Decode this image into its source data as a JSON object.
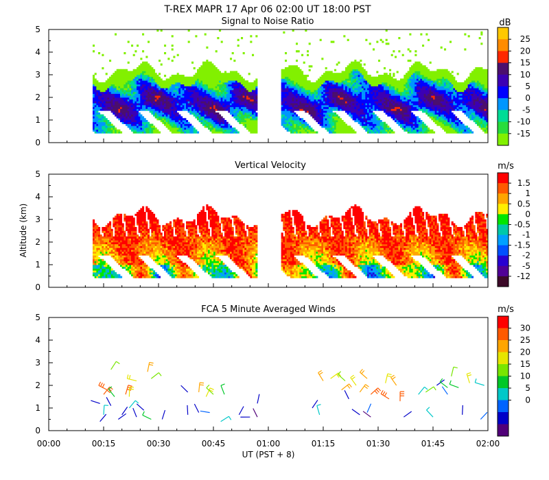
{
  "chart_data": [
    {
      "type": "heatmap",
      "title": "Signal to Noise Ratio",
      "ylabel": "",
      "ylim": [
        0,
        5
      ],
      "yticks": [
        "0",
        "1",
        "2",
        "3",
        "4",
        "5"
      ],
      "colorbar_unit": "dB",
      "colorbar_labels": [
        "25",
        "20",
        "15",
        "10",
        "5",
        "0",
        "-5",
        "-10",
        "-15"
      ],
      "colorbar_colors": [
        "#ffc800",
        "#ff8c00",
        "#ff2800",
        "#4b0f6e",
        "#3c00b4",
        "#0000ff",
        "#0096ff",
        "#00dc96",
        "#28dc3c",
        "#82f000"
      ],
      "data_gaps": [
        [
          0.95,
          1.05
        ]
      ]
    },
    {
      "type": "heatmap",
      "title": "Vertical Velocity",
      "ylabel": "Altitude (km)",
      "ylim": [
        0,
        5
      ],
      "yticks": [
        "0",
        "1",
        "2",
        "3",
        "4",
        "5"
      ],
      "colorbar_unit": "m/s",
      "colorbar_labels": [
        "1.5",
        "1",
        "0.5",
        "0",
        "-0.5",
        "-1",
        "-1.5",
        "-2",
        "-5",
        "-12"
      ],
      "colorbar_colors": [
        "#ff0000",
        "#ff5a00",
        "#ffa500",
        "#ffee00",
        "#00e600",
        "#00c8aa",
        "#00a0ff",
        "#0050ff",
        "#2800d2",
        "#500096",
        "#3c0a28"
      ],
      "data_gaps": [
        [
          0.95,
          1.05
        ]
      ]
    },
    {
      "type": "scatter",
      "title": "FCA 5 Minute Averaged Winds",
      "ylabel": "",
      "ylim": [
        0,
        5
      ],
      "yticks": [
        "0",
        "1",
        "2",
        "3",
        "4",
        "5"
      ],
      "xlabel": "UT  (PST + 8)",
      "xtick_labels": [
        "00:00",
        "00:15",
        "00:30",
        "00:45",
        "01:00",
        "01:15",
        "01:30",
        "01:45",
        "02:00"
      ],
      "colorbar_unit": "m/s",
      "colorbar_labels": [
        "30",
        "25",
        "20",
        "15",
        "10",
        "5",
        "0"
      ],
      "colorbar_colors": [
        "#ff0000",
        "#ff5a00",
        "#ffa500",
        "#e6e600",
        "#78e600",
        "#00c828",
        "#00c8c8",
        "#0064ff",
        "#0000c8",
        "#500078"
      ],
      "barbs": [
        {
          "t": 15,
          "alt": 1.6,
          "speed": 26
        },
        {
          "t": 16,
          "alt": 1.8,
          "speed": 25
        },
        {
          "t": 17,
          "alt": 2.7,
          "speed": 15
        },
        {
          "t": 18,
          "alt": 1.5,
          "speed": 12
        },
        {
          "t": 21,
          "alt": 1.6,
          "speed": 24
        },
        {
          "t": 22,
          "alt": 1.5,
          "speed": 19
        },
        {
          "t": 24,
          "alt": 2.2,
          "speed": 17
        },
        {
          "t": 27,
          "alt": 2.6,
          "speed": 20
        },
        {
          "t": 28,
          "alt": 2.3,
          "speed": 14
        },
        {
          "t": 14,
          "alt": 1.2,
          "speed": 4
        },
        {
          "t": 15,
          "alt": 0.7,
          "speed": 9
        },
        {
          "t": 17,
          "alt": 1.1,
          "speed": 4
        },
        {
          "t": 20,
          "alt": 0.7,
          "speed": 3
        },
        {
          "t": 22,
          "alt": 1.0,
          "speed": 10
        },
        {
          "t": 24,
          "alt": 0.6,
          "speed": 2
        },
        {
          "t": 26,
          "alt": 0.9,
          "speed": 4
        },
        {
          "t": 28,
          "alt": 0.5,
          "speed": 11
        },
        {
          "t": 31,
          "alt": 0.5,
          "speed": 3
        },
        {
          "t": 14,
          "alt": 0.4,
          "speed": 3
        },
        {
          "t": 19,
          "alt": 0.5,
          "speed": 2
        },
        {
          "t": 38,
          "alt": 1.7,
          "speed": 3
        },
        {
          "t": 41,
          "alt": 1.7,
          "speed": 21
        },
        {
          "t": 43,
          "alt": 1.5,
          "speed": 18
        },
        {
          "t": 45,
          "alt": 1.6,
          "speed": 14
        },
        {
          "t": 48,
          "alt": 1.6,
          "speed": 13
        },
        {
          "t": 38,
          "alt": 0.7,
          "speed": 4
        },
        {
          "t": 41,
          "alt": 0.8,
          "speed": 2
        },
        {
          "t": 44,
          "alt": 0.8,
          "speed": 6
        },
        {
          "t": 47,
          "alt": 0.4,
          "speed": 9
        },
        {
          "t": 52,
          "alt": 0.7,
          "speed": 3
        },
        {
          "t": 55,
          "alt": 0.6,
          "speed": 2
        },
        {
          "t": 57,
          "alt": 0.6,
          "speed": 1
        },
        {
          "t": 57,
          "alt": 1.2,
          "speed": 2
        },
        {
          "t": 72,
          "alt": 1.0,
          "speed": 3
        },
        {
          "t": 74,
          "alt": 0.7,
          "speed": 9
        },
        {
          "t": 75,
          "alt": 2.2,
          "speed": 20
        },
        {
          "t": 77,
          "alt": 2.3,
          "speed": 17
        },
        {
          "t": 80,
          "alt": 1.8,
          "speed": 22
        },
        {
          "t": 81,
          "alt": 2.2,
          "speed": 14
        },
        {
          "t": 82,
          "alt": 1.4,
          "speed": 2
        },
        {
          "t": 84,
          "alt": 2.0,
          "speed": 19
        },
        {
          "t": 85,
          "alt": 1.7,
          "speed": 23
        },
        {
          "t": 87,
          "alt": 2.3,
          "speed": 21
        },
        {
          "t": 88,
          "alt": 1.6,
          "speed": 24
        },
        {
          "t": 85,
          "alt": 0.7,
          "speed": 4
        },
        {
          "t": 87,
          "alt": 0.8,
          "speed": 6
        },
        {
          "t": 88,
          "alt": 0.6,
          "speed": 1
        },
        {
          "t": 92,
          "alt": 2.1,
          "speed": 19
        },
        {
          "t": 95,
          "alt": 2.0,
          "speed": 20
        },
        {
          "t": 93,
          "alt": 1.4,
          "speed": 26
        },
        {
          "t": 96,
          "alt": 1.3,
          "speed": 25
        },
        {
          "t": 97,
          "alt": 0.6,
          "speed": 3
        },
        {
          "t": 101,
          "alt": 1.6,
          "speed": 10
        },
        {
          "t": 103,
          "alt": 1.7,
          "speed": 15
        },
        {
          "t": 106,
          "alt": 2.0,
          "speed": 4
        },
        {
          "t": 109,
          "alt": 1.9,
          "speed": 11
        },
        {
          "t": 110,
          "alt": 2.4,
          "speed": 15
        },
        {
          "t": 112,
          "alt": 1.9,
          "speed": 13
        },
        {
          "t": 115,
          "alt": 2.1,
          "speed": 17
        },
        {
          "t": 119,
          "alt": 2.0,
          "speed": 10
        },
        {
          "t": 109,
          "alt": 1.6,
          "speed": 6
        },
        {
          "t": 105,
          "alt": 0.6,
          "speed": 10
        },
        {
          "t": 113,
          "alt": 0.7,
          "speed": 3
        },
        {
          "t": 118,
          "alt": 0.5,
          "speed": 5
        }
      ]
    }
  ],
  "header": {
    "title": "T-REX  MAPR 17 Apr 06  02:00 UT  18:00  PST"
  }
}
